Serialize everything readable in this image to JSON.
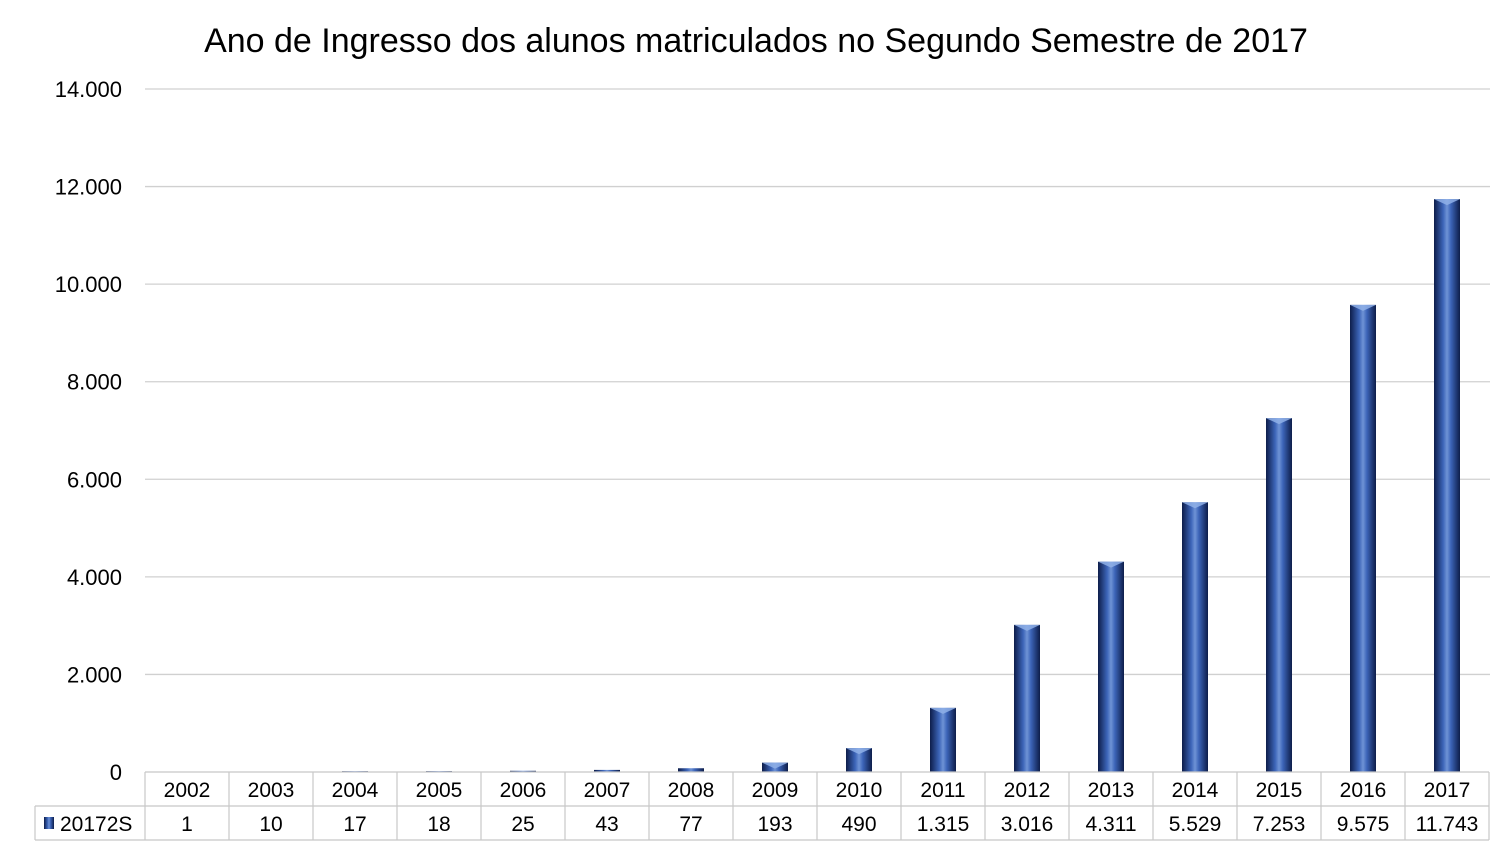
{
  "chart_data": {
    "type": "bar",
    "title": "Ano de Ingresso dos alunos matriculados no Segundo Semestre de 2017",
    "xlabel": "",
    "ylabel": "",
    "categories": [
      "2002",
      "2003",
      "2004",
      "2005",
      "2006",
      "2007",
      "2008",
      "2009",
      "2010",
      "2011",
      "2012",
      "2013",
      "2014",
      "2015",
      "2016",
      "2017"
    ],
    "series": [
      {
        "name": "20172S",
        "values": [
          1,
          10,
          17,
          18,
          25,
          43,
          77,
          193,
          490,
          1315,
          3016,
          4311,
          5529,
          7253,
          9575,
          11743
        ],
        "labels": [
          "1",
          "10",
          "17",
          "18",
          "25",
          "43",
          "77",
          "193",
          "490",
          "1.315",
          "3.016",
          "4.311",
          "5.529",
          "7.253",
          "9.575",
          "11.743"
        ]
      }
    ],
    "ylim": [
      0,
      14000
    ],
    "y_ticks": [
      0,
      2000,
      4000,
      6000,
      8000,
      10000,
      12000,
      14000
    ],
    "y_tick_labels": [
      "0",
      "2.000",
      "4.000",
      "6.000",
      "8.000",
      "10.000",
      "12.000",
      "14.000"
    ],
    "grid": true,
    "data_table": true,
    "legend_placement": "data-table-left",
    "colors": {
      "bar_edge": "#0d1d4a",
      "bar_mid": "#4a72c4",
      "bar_highlight": "#6f93d6"
    }
  }
}
